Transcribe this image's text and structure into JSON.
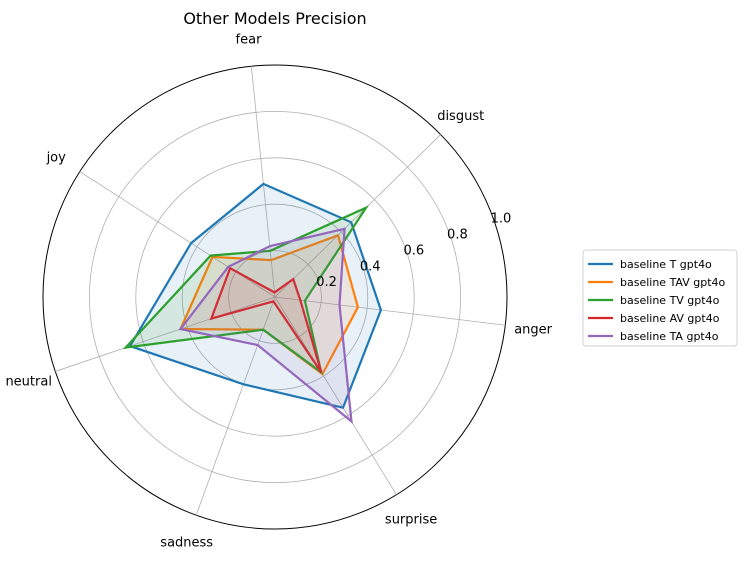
{
  "chart_data": {
    "type": "radar",
    "title": "Other Models Precision",
    "categories": [
      "anger",
      "disgust",
      "fear",
      "joy",
      "neutral",
      "sadness",
      "surprise"
    ],
    "rlim": [
      0,
      1.0
    ],
    "rticks": [
      0.2,
      0.4,
      0.6,
      0.8,
      1.0
    ],
    "rtick_labels": [
      "0.2",
      "0.4",
      "0.6",
      "0.8",
      "1.0"
    ],
    "grid": true,
    "legend_position": "right",
    "series": [
      {
        "name": "baseline T gpt4o",
        "color": "#1f77b4",
        "values": [
          0.46,
          0.46,
          0.49,
          0.43,
          0.66,
          0.4,
          0.56
        ]
      },
      {
        "name": "baseline TAV gpt4o",
        "color": "#ff7f0e",
        "values": [
          0.36,
          0.38,
          0.16,
          0.32,
          0.43,
          0.15,
          0.39
        ]
      },
      {
        "name": "baseline TV gpt4o",
        "color": "#2ca02c",
        "values": [
          0.13,
          0.55,
          0.2,
          0.33,
          0.68,
          0.15,
          0.38
        ]
      },
      {
        "name": "baseline AV gpt4o",
        "color": "#d62728",
        "values": [
          0.11,
          0.11,
          0.02,
          0.23,
          0.29,
          0.02,
          0.38
        ]
      },
      {
        "name": "baseline TA gpt4o",
        "color": "#9467bd",
        "values": [
          0.28,
          0.42,
          0.22,
          0.24,
          0.43,
          0.22,
          0.63
        ]
      }
    ]
  }
}
